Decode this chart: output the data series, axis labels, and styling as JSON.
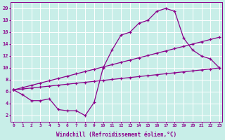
{
  "line1_x": [
    0,
    1,
    2,
    3,
    4,
    5,
    6,
    7,
    8,
    9,
    10,
    11,
    12,
    13,
    14,
    15,
    16,
    17,
    18,
    19,
    20,
    21,
    22,
    23
  ],
  "line1_y": [
    6.3,
    5.5,
    4.5,
    4.5,
    4.8,
    3.0,
    2.8,
    2.8,
    2.0,
    4.2,
    10.0,
    13.0,
    15.5,
    16.0,
    17.5,
    18.0,
    19.5,
    20.0,
    19.5,
    15.0,
    13.0,
    12.0,
    11.5,
    10.0
  ],
  "line2_x": [
    0,
    1,
    2,
    3,
    4,
    5,
    6,
    7,
    8,
    9,
    10,
    11,
    12,
    13,
    14,
    15,
    16,
    17,
    18,
    19,
    20,
    21,
    22,
    23
  ],
  "line2_y": [
    6.3,
    6.46,
    6.62,
    6.78,
    6.94,
    7.1,
    7.26,
    7.42,
    7.58,
    7.74,
    7.9,
    8.06,
    8.22,
    8.38,
    8.54,
    8.7,
    8.86,
    9.02,
    9.18,
    9.34,
    9.5,
    9.66,
    9.82,
    10.0
  ],
  "line3_x": [
    0,
    1,
    2,
    3,
    4,
    5,
    6,
    7,
    8,
    9,
    10,
    11,
    12,
    13,
    14,
    15,
    16,
    17,
    18,
    19,
    20,
    21,
    22,
    23
  ],
  "line3_y": [
    6.3,
    6.69,
    7.07,
    7.46,
    7.84,
    8.23,
    8.61,
    9.0,
    9.39,
    9.77,
    10.16,
    10.54,
    10.93,
    11.31,
    11.7,
    12.08,
    12.47,
    12.85,
    13.24,
    13.62,
    14.01,
    14.39,
    14.78,
    15.16
  ],
  "line_color": "#8B008B",
  "bg_color": "#C8EEE8",
  "xlabel": "Windchill (Refroidissement éolien,°C)",
  "ylabel_ticks": [
    2,
    4,
    6,
    8,
    10,
    12,
    14,
    16,
    18,
    20
  ],
  "xticks": [
    0,
    1,
    2,
    3,
    4,
    5,
    6,
    7,
    8,
    9,
    10,
    11,
    12,
    13,
    14,
    15,
    16,
    17,
    18,
    19,
    20,
    21,
    22,
    23
  ],
  "ylim": [
    1.0,
    21.0
  ],
  "xlim": [
    -0.3,
    23.3
  ]
}
